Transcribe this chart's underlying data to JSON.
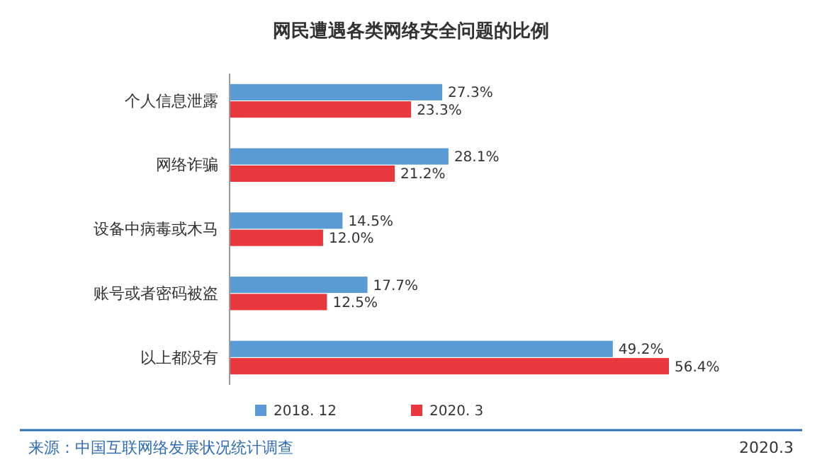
{
  "chart_data": {
    "type": "bar",
    "orientation": "horizontal",
    "title": "网民遭遇各类网络安全问题的比例",
    "categories": [
      "个人信息泄露",
      "网络诈骗",
      "设备中病毒或木马",
      "账号或者密码被盗",
      "以上都没有"
    ],
    "series": [
      {
        "name": "2018. 12",
        "color": "#5b9bd5",
        "values": [
          27.3,
          28.1,
          14.5,
          17.7,
          49.2
        ],
        "value_labels": [
          "27.3%",
          "28.1%",
          "14.5%",
          "17.7%",
          "49.2%"
        ]
      },
      {
        "name": "2020. 3",
        "color": "#e8383d",
        "values": [
          23.3,
          21.2,
          12.0,
          12.5,
          56.4
        ],
        "value_labels": [
          "23.3%",
          "21.2%",
          "12.0%",
          "12.5%",
          "56.4%"
        ]
      }
    ],
    "legend": "bottom",
    "annotations": [
      "来源：中国互联网络发展状况统计调查",
      "2020.3"
    ]
  }
}
